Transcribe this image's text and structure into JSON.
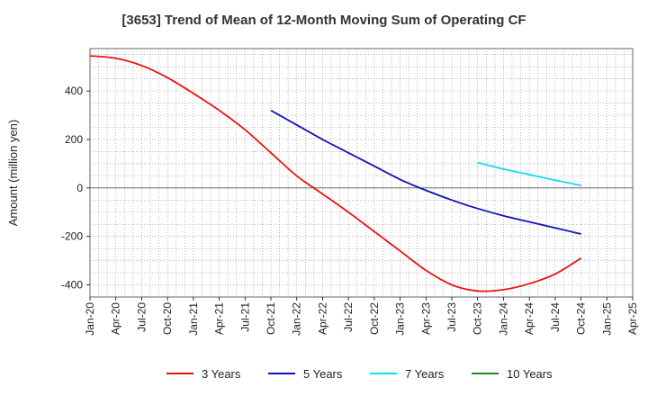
{
  "chart_data": {
    "type": "line",
    "title": "[3653]  Trend of Mean of 12-Month Moving Sum of Operating CF",
    "xlabel": "",
    "ylabel": "Amount (million yen)",
    "ylim": [
      -450,
      575
    ],
    "yticks": [
      -400,
      -200,
      0,
      200,
      400
    ],
    "ytick_labels": [
      "-400",
      "-200",
      "0",
      "200",
      "400"
    ],
    "xtick_labels": [
      "Jan-20",
      "Apr-20",
      "Jul-20",
      "Oct-20",
      "Jan-21",
      "Apr-21",
      "Jul-21",
      "Oct-21",
      "Jan-22",
      "Apr-22",
      "Jul-22",
      "Oct-22",
      "Jan-23",
      "Apr-23",
      "Jul-23",
      "Oct-23",
      "Jan-24",
      "Apr-24",
      "Jul-24",
      "Oct-24",
      "Jan-25",
      "Apr-25"
    ],
    "grid": true,
    "legend_position": "bottom",
    "series": [
      {
        "name": "3 Years",
        "color": "#ee1111",
        "x": [
          "Jan-20",
          "Apr-20",
          "Jul-20",
          "Oct-20",
          "Jan-21",
          "Apr-21",
          "Jul-21",
          "Oct-21",
          "Jan-22",
          "Apr-22",
          "Jul-22",
          "Oct-22",
          "Jan-23",
          "Apr-23",
          "Jul-23",
          "Oct-23",
          "Jan-24",
          "Apr-24",
          "Jul-24",
          "Oct-24"
        ],
        "values": [
          545,
          535,
          505,
          455,
          390,
          320,
          240,
          145,
          50,
          -25,
          -100,
          -180,
          -260,
          -340,
          -400,
          -425,
          -420,
          -395,
          -355,
          -290
        ]
      },
      {
        "name": "5 Years",
        "color": "#1111bb",
        "x": [
          "Oct-21",
          "Jan-22",
          "Apr-22",
          "Jul-22",
          "Oct-22",
          "Jan-23",
          "Apr-23",
          "Jul-23",
          "Oct-23",
          "Jan-24",
          "Apr-24",
          "Jul-24",
          "Oct-24"
        ],
        "values": [
          320,
          260,
          200,
          145,
          90,
          35,
          -10,
          -50,
          -85,
          -115,
          -140,
          -165,
          -190
        ]
      },
      {
        "name": "7 Years",
        "color": "#11ddee",
        "x": [
          "Oct-23",
          "Jan-24",
          "Apr-24",
          "Jul-24",
          "Oct-24"
        ],
        "values": [
          105,
          78,
          55,
          32,
          10
        ]
      },
      {
        "name": "10 Years",
        "color": "#228822",
        "x": [],
        "values": []
      }
    ]
  }
}
